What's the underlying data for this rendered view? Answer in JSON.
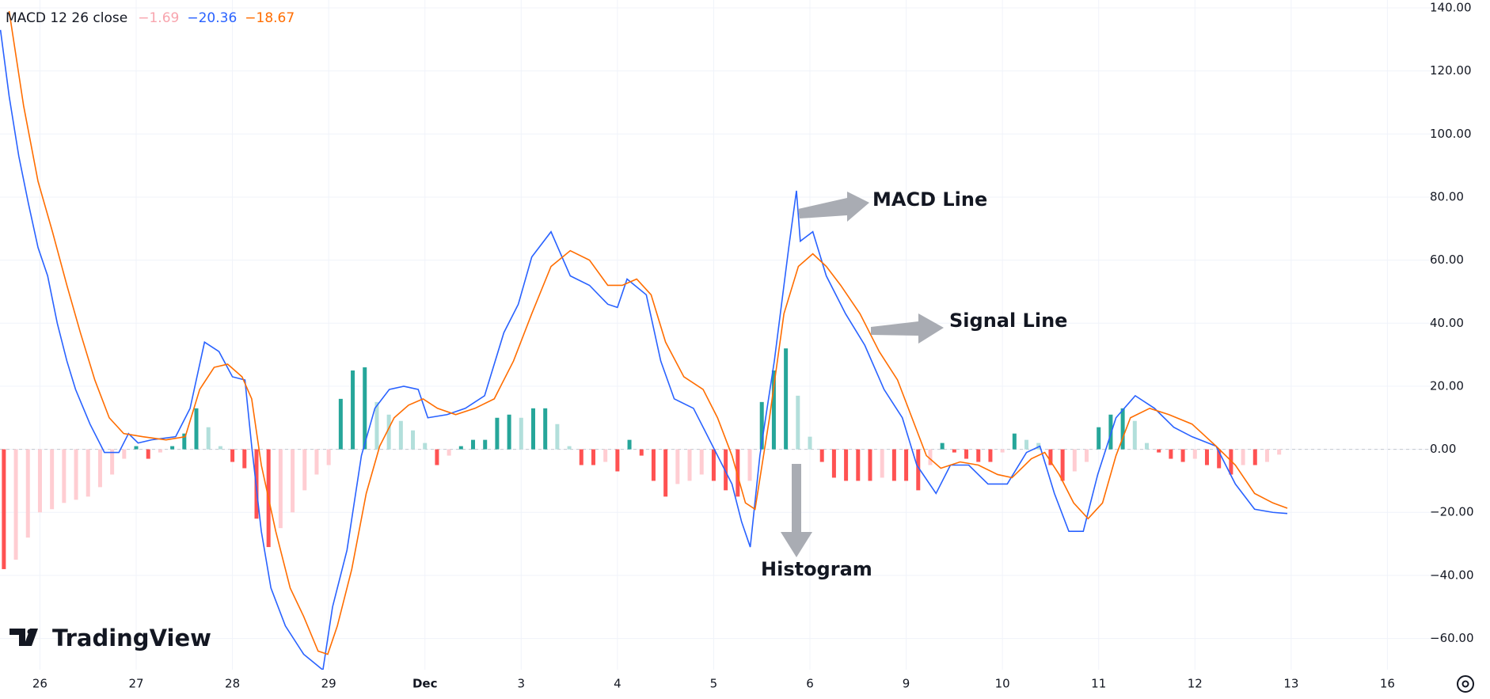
{
  "chart_data": {
    "type": "line",
    "title": "MACD 12 26 close",
    "brand": "TradingView",
    "annotations": [
      "MACD Line",
      "Signal Line",
      "Histogram"
    ],
    "xlim": [
      -0.415,
      14.49
    ],
    "xticks": [
      {
        "value": 0,
        "label": "26"
      },
      {
        "value": 1,
        "label": "27"
      },
      {
        "value": 2,
        "label": "28"
      },
      {
        "value": 3,
        "label": "29"
      },
      {
        "value": 4,
        "label": "Dec"
      },
      {
        "value": 5,
        "label": "3"
      },
      {
        "value": 6,
        "label": "4"
      },
      {
        "value": 7,
        "label": "5"
      },
      {
        "value": 8,
        "label": "6"
      },
      {
        "value": 9,
        "label": "9"
      },
      {
        "value": 10,
        "label": "10"
      },
      {
        "value": 11,
        "label": "11"
      },
      {
        "value": 12,
        "label": "12"
      },
      {
        "value": 13,
        "label": "13"
      },
      {
        "value": 14,
        "label": "16"
      }
    ],
    "ylim": [
      -69.9,
      142.5
    ],
    "yticks": [
      {
        "value": -60,
        "label": "−60.00"
      },
      {
        "value": -40,
        "label": "−40.00"
      },
      {
        "value": -20,
        "label": "−20.00"
      },
      {
        "value": 0,
        "label": "0.00"
      },
      {
        "value": 20,
        "label": "20.00"
      },
      {
        "value": 40,
        "label": "40.00"
      },
      {
        "value": 60,
        "label": "60.00"
      },
      {
        "value": 80,
        "label": "80.00"
      },
      {
        "value": 100,
        "label": "100.00"
      },
      {
        "value": 120,
        "label": "120.00"
      },
      {
        "value": 140,
        "label": "140.00"
      }
    ],
    "grid": true,
    "series": [
      {
        "type": "bar",
        "label": "−1.69",
        "color": "#26a69a",
        "color_falling": "#b2dfdb",
        "color_negative": "#ff5252",
        "color_negative_rising": "#ffcdd2",
        "label_color": "#f8a5ae",
        "x": [
          -0.375,
          -0.25,
          -0.125,
          0,
          0.125,
          0.25,
          0.375,
          0.5,
          0.625,
          0.75,
          0.875,
          1,
          1.125,
          1.25,
          1.375,
          1.5,
          1.625,
          1.75,
          1.875,
          2,
          2.125,
          2.25,
          2.375,
          2.5,
          2.625,
          2.75,
          2.875,
          3,
          3.125,
          3.25,
          3.375,
          3.5,
          3.625,
          3.75,
          3.875,
          4,
          4.125,
          4.25,
          4.375,
          4.5,
          4.625,
          4.75,
          4.875,
          5,
          5.125,
          5.25,
          5.375,
          5.5,
          5.625,
          5.75,
          5.875,
          6,
          6.125,
          6.25,
          6.375,
          6.5,
          6.625,
          6.75,
          6.875,
          7,
          7.125,
          7.25,
          7.375,
          7.5,
          7.625,
          7.75,
          7.875,
          8,
          8.125,
          8.25,
          8.375,
          8.5,
          8.625,
          8.75,
          8.875,
          9,
          9.125,
          9.25,
          9.375,
          9.5,
          9.625,
          9.75,
          9.875,
          10,
          10.125,
          10.25,
          10.375,
          10.5,
          10.625,
          10.75,
          10.875,
          11,
          11.125,
          11.25,
          11.375,
          11.5,
          11.625,
          11.75,
          11.875,
          12,
          12.125,
          12.25,
          12.375,
          12.5,
          12.625,
          12.75,
          12.875
        ],
        "values": [
          -38,
          -35,
          -28,
          -20,
          -19,
          -17,
          -16,
          -15,
          -12,
          -8,
          -3,
          1,
          -3,
          -1,
          1,
          5,
          13,
          7,
          1,
          -4,
          -6,
          -22,
          -31,
          -25,
          -20,
          -13,
          -8,
          -5,
          16,
          25,
          26,
          15,
          11,
          9,
          6,
          2,
          -5,
          -2,
          1,
          3,
          3,
          10,
          11,
          10,
          13,
          13,
          8,
          1,
          -5,
          -5,
          -4,
          -7,
          3,
          -2,
          -10,
          -15,
          -11,
          -10,
          -8,
          -10,
          -13,
          -15,
          -10,
          15,
          25,
          32,
          17,
          4,
          -4,
          -9,
          -10,
          -10,
          -10,
          -9,
          -10,
          -10,
          -13,
          -5,
          2,
          -1,
          -3,
          -4,
          -4,
          -1,
          5,
          3,
          2,
          -5,
          -10,
          -7,
          -4,
          7,
          11,
          13,
          9,
          2,
          -1,
          -3,
          -4,
          -3,
          -5,
          -6,
          -8,
          -5,
          -5,
          -4,
          -1.69
        ]
      },
      {
        "type": "line",
        "label": "−20.36",
        "color": "#2962ff",
        "x": [
          -0.41,
          -0.32,
          -0.22,
          -0.12,
          -0.02,
          0.08,
          0.18,
          0.28,
          0.37,
          0.52,
          0.67,
          0.82,
          0.92,
          1.02,
          1.16,
          1.41,
          1.56,
          1.71,
          1.86,
          2.0,
          2.13,
          2.2,
          2.3,
          2.4,
          2.55,
          2.74,
          2.94,
          3.04,
          3.19,
          3.34,
          3.48,
          3.63,
          3.78,
          3.93,
          4.03,
          4.23,
          4.42,
          4.62,
          4.82,
          4.97,
          5.11,
          5.31,
          5.51,
          5.71,
          5.9,
          6.0,
          6.1,
          6.3,
          6.45,
          6.59,
          6.79,
          6.99,
          7.19,
          7.29,
          7.38,
          7.48,
          7.63,
          7.78,
          7.86,
          7.9,
          8.03,
          8.17,
          8.37,
          8.57,
          8.77,
          8.96,
          9.11,
          9.31,
          9.46,
          9.65,
          9.85,
          10.05,
          10.25,
          10.39,
          10.54,
          10.69,
          10.84,
          10.99,
          11.18,
          11.38,
          11.58,
          11.78,
          11.97,
          12.22,
          12.42,
          12.62,
          12.81,
          12.96
        ],
        "values": [
          133,
          112,
          93,
          78,
          64,
          55,
          40,
          28,
          19,
          8,
          -1,
          -1,
          5,
          2,
          3,
          4,
          13,
          34,
          31,
          23,
          22,
          1,
          -26,
          -44,
          -56,
          -65,
          -70,
          -50,
          -32,
          -2,
          13,
          19,
          20,
          19,
          10,
          11,
          13,
          17,
          37,
          46,
          61,
          69,
          55,
          52,
          46,
          45,
          54,
          49,
          28,
          16,
          13,
          1,
          -11,
          -23,
          -31,
          -2,
          28,
          64,
          82,
          66,
          69,
          55,
          43,
          33,
          19,
          10,
          -5,
          -14,
          -5,
          -5,
          -11,
          -11,
          -1,
          1,
          -14,
          -26,
          -26,
          -8,
          10,
          17,
          13,
          7,
          4,
          1,
          -11,
          -19,
          -20,
          -20.36
        ]
      },
      {
        "type": "line",
        "label": "−18.67",
        "color": "#ff6d00",
        "x": [
          -0.32,
          -0.17,
          -0.02,
          0.13,
          0.28,
          0.42,
          0.57,
          0.72,
          0.87,
          1.07,
          1.31,
          1.51,
          1.66,
          1.81,
          1.95,
          2.1,
          2.2,
          2.3,
          2.45,
          2.6,
          2.74,
          2.89,
          2.99,
          3.09,
          3.24,
          3.39,
          3.53,
          3.68,
          3.83,
          3.98,
          4.13,
          4.32,
          4.52,
          4.72,
          4.92,
          5.11,
          5.31,
          5.51,
          5.71,
          5.9,
          6.05,
          6.2,
          6.35,
          6.5,
          6.69,
          6.89,
          7.04,
          7.19,
          7.33,
          7.43,
          7.58,
          7.73,
          7.88,
          8.03,
          8.17,
          8.32,
          8.52,
          8.72,
          8.91,
          9.06,
          9.21,
          9.36,
          9.56,
          9.75,
          9.95,
          10.1,
          10.3,
          10.44,
          10.59,
          10.74,
          10.89,
          11.04,
          11.18,
          11.33,
          11.53,
          11.73,
          11.97,
          12.22,
          12.42,
          12.62,
          12.81,
          12.96
        ],
        "values": [
          139,
          109,
          85,
          69,
          52,
          37,
          22,
          10,
          5,
          4,
          3,
          4,
          19,
          26,
          27,
          23,
          16,
          -5,
          -26,
          -44,
          -53,
          -64,
          -65,
          -56,
          -38,
          -14,
          1,
          10,
          14,
          16,
          13,
          11,
          13,
          16,
          28,
          43,
          58,
          63,
          60,
          52,
          52,
          54,
          49,
          34,
          23,
          19,
          10,
          -2,
          -17,
          -19,
          10,
          43,
          58,
          62,
          58,
          52,
          43,
          31,
          22,
          10,
          -2,
          -6,
          -4,
          -5,
          -8,
          -9,
          -3,
          -1,
          -8,
          -17,
          -22,
          -17,
          -2,
          10,
          13,
          11,
          8,
          1,
          -5,
          -14,
          -17,
          -18.67
        ]
      }
    ]
  }
}
